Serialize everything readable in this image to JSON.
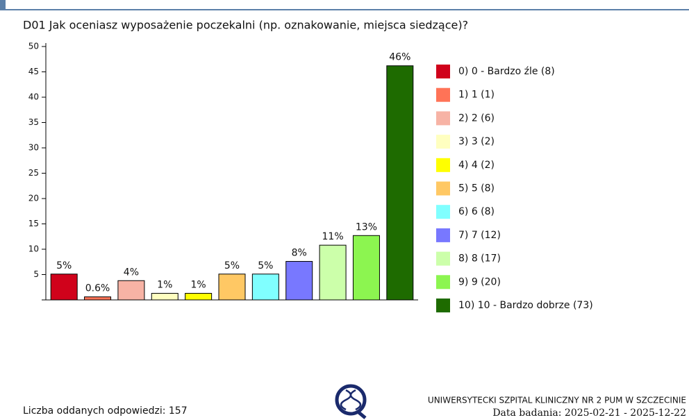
{
  "chart_data": {
    "type": "bar",
    "title": "D01 Jak oceniasz wyposażenie poczekalni (np. oznakowanie, miejsca siedzące)?",
    "categories": [
      "0) 0 - Bardzo źle (8)",
      "1) 1 (1)",
      "2) 2 (6)",
      "3) 3 (2)",
      "4) 4 (2)",
      "5) 5 (8)",
      "6) 6 (8)",
      "7) 7 (12)",
      "8) 8 (17)",
      "9) 9 (20)",
      "10) 10 - Bardzo dobrze (73)"
    ],
    "values": [
      5.1,
      0.6,
      3.8,
      1.3,
      1.3,
      5.1,
      5.1,
      7.6,
      10.8,
      12.7,
      46.2
    ],
    "value_labels": [
      "5%",
      "0.6%",
      "4%",
      "1%",
      "1%",
      "5%",
      "5%",
      "8%",
      "11%",
      "13%",
      "46%"
    ],
    "colors": [
      "#d0021b",
      "#ff7357",
      "#f7b3a5",
      "#ffffc0",
      "#ffff00",
      "#ffc864",
      "#80ffff",
      "#7878ff",
      "#ccffaa",
      "#8cf550",
      "#1e6b00"
    ],
    "ylim": [
      0,
      50
    ],
    "yticks": [
      5,
      10,
      15,
      20,
      25,
      30,
      35,
      40,
      45,
      50
    ],
    "legend": "right"
  },
  "footer": {
    "responses": "Liczba oddanych odpowiedzi: 157",
    "institution": "UNIWERSYTECKI SZPITAL KLINICZNY NR 2 PUM W SZCZECINIE",
    "date": "Data badania: 2025-02-21 - 2025-12-22"
  }
}
